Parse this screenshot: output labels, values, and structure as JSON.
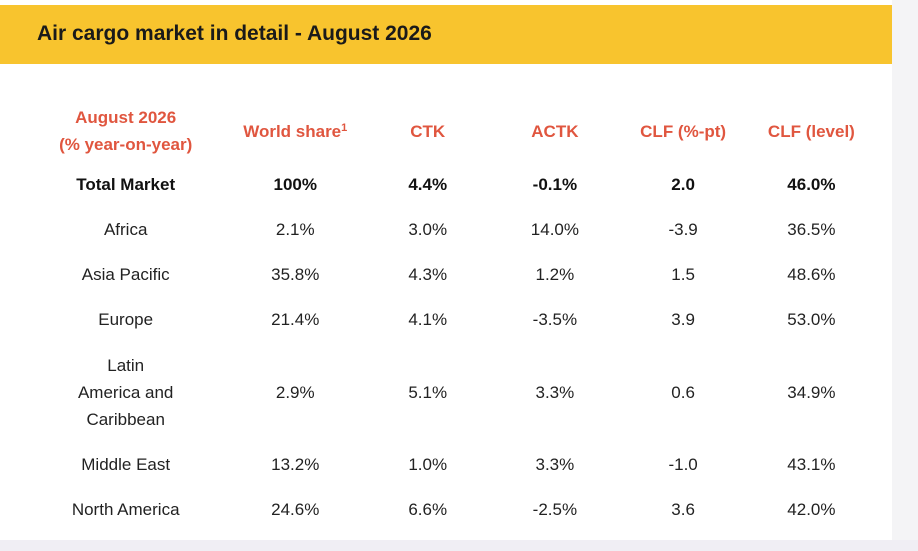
{
  "header": {
    "title": "Air cargo market in detail - August 2026"
  },
  "colors": {
    "header_bg": "#f8c42e",
    "column_header_text": "#e0563f"
  },
  "table": {
    "columns": {
      "region_line1": "August 2026",
      "region_line2": "(% year-on-year)",
      "world_share": "World share",
      "world_share_footnote": "1",
      "ctk": "CTK",
      "actk": "ACTK",
      "clf_pt": "CLF (%-pt)",
      "clf_level": "CLF (level)"
    },
    "rows": [
      {
        "region": "Total Market",
        "world_share": "100%",
        "ctk": "4.4%",
        "actk": "-0.1%",
        "clf_pt": "2.0",
        "clf_level": "46.0%"
      },
      {
        "region": "Africa",
        "world_share": "2.1%",
        "ctk": "3.0%",
        "actk": "14.0%",
        "clf_pt": "-3.9",
        "clf_level": "36.5%"
      },
      {
        "region": "Asia Pacific",
        "world_share": "35.8%",
        "ctk": "4.3%",
        "actk": "1.2%",
        "clf_pt": "1.5",
        "clf_level": "48.6%"
      },
      {
        "region": "Europe",
        "world_share": "21.4%",
        "ctk": "4.1%",
        "actk": "-3.5%",
        "clf_pt": "3.9",
        "clf_level": "53.0%"
      },
      {
        "region_line1": "Latin",
        "region_line2": "America and",
        "region_line3": "Caribbean",
        "world_share": "2.9%",
        "ctk": "5.1%",
        "actk": "3.3%",
        "clf_pt": "0.6",
        "clf_level": "34.9%"
      },
      {
        "region": "Middle East",
        "world_share": "13.2%",
        "ctk": "1.0%",
        "actk": "3.3%",
        "clf_pt": "-1.0",
        "clf_level": "43.1%"
      },
      {
        "region": "North America",
        "world_share": "24.6%",
        "ctk": "6.6%",
        "actk": "-2.5%",
        "clf_pt": "3.6",
        "clf_level": "42.0%"
      }
    ]
  }
}
